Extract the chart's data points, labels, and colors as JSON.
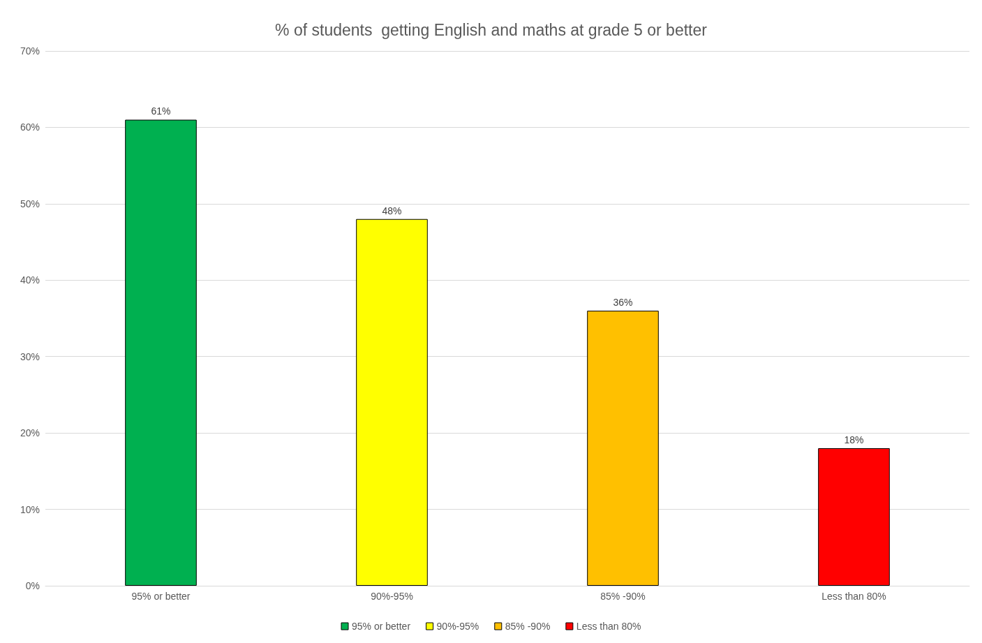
{
  "chart_data": {
    "type": "bar",
    "title": "% of students  getting English and maths at grade 5 or better",
    "categories": [
      "95% or better",
      "90%-95%",
      "85% -90%",
      "Less than 80%"
    ],
    "stacked": true,
    "series": [
      {
        "name": "95% or better",
        "color": "#00b050",
        "values": [
          61,
          null,
          null,
          null
        ],
        "value_labels": [
          "61%",
          null,
          null,
          null
        ]
      },
      {
        "name": "90%-95%",
        "color": "#ffff00",
        "values": [
          null,
          48,
          null,
          null
        ],
        "value_labels": [
          null,
          "48%",
          null,
          null
        ]
      },
      {
        "name": "85% -90%",
        "color": "#ffc000",
        "values": [
          null,
          null,
          36,
          null
        ],
        "value_labels": [
          null,
          null,
          "36%",
          null
        ]
      },
      {
        "name": "Less than 80%",
        "color": "#ff0000",
        "values": [
          null,
          null,
          null,
          18
        ],
        "value_labels": [
          null,
          null,
          null,
          "18%"
        ]
      }
    ],
    "ylim": [
      0,
      70
    ],
    "yticks": [
      {
        "value": 0,
        "label": "0%"
      },
      {
        "value": 10,
        "label": "10%"
      },
      {
        "value": 20,
        "label": "20%"
      },
      {
        "value": 30,
        "label": "30%"
      },
      {
        "value": 40,
        "label": "40%"
      },
      {
        "value": 50,
        "label": "50%"
      },
      {
        "value": 60,
        "label": "60%"
      },
      {
        "value": 70,
        "label": "70%"
      }
    ],
    "grid": "y",
    "legend": "bottom"
  }
}
